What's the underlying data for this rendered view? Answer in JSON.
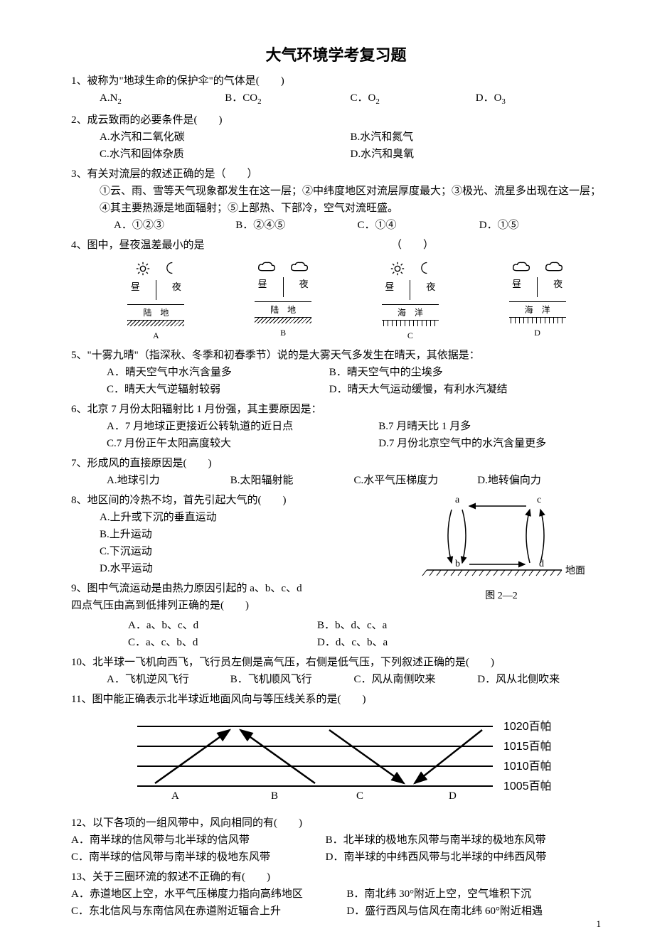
{
  "title": "大气环境学考复习题",
  "q1": {
    "text": "1、被称为\"地球生命的保护伞\"的气体是(　　)",
    "a": "A.N₂",
    "b": "B．CO₂",
    "c": "C．O₂",
    "d": "D．O₃"
  },
  "q2": {
    "text": "2、成云致雨的必要条件是(　　)",
    "a": "A.水汽和二氧化碳",
    "b": "B.水汽和氮气",
    "c": "C.水汽和固体杂质",
    "d": "D.水汽和臭氧"
  },
  "q3": {
    "text": "3、有关对流层的叙述正确的是（　　）",
    "detail": "①云、雨、雪等天气现象都发生在这一层；②中纬度地区对流层厚度最大；③极光、流星多出现在这一层；④其主要热源是地面辐射；⑤上部热、下部冷，空气对流旺盛。",
    "a": "A．①②③",
    "b": "B．②④⑤",
    "c": "C．①④",
    "d": "D．①⑤"
  },
  "q4": {
    "text": "4、图中，昼夜温差最小的是　　　　　　　　　　　　　　　　　　（　　）",
    "panels": [
      {
        "key": "A",
        "day_icon": "sun",
        "night_icon": "moon",
        "day": "昼",
        "night": "夜",
        "surface": "陆　地",
        "ground": "land"
      },
      {
        "key": "B",
        "day_icon": "cloud",
        "night_icon": "cloud",
        "day": "昼",
        "night": "夜",
        "surface": "陆　地",
        "ground": "land"
      },
      {
        "key": "C",
        "day_icon": "sun",
        "night_icon": "moon",
        "day": "昼",
        "night": "夜",
        "surface": "海　洋",
        "ground": "sea"
      },
      {
        "key": "D",
        "day_icon": "cloud",
        "night_icon": "cloud",
        "day": "昼",
        "night": "夜",
        "surface": "海　洋",
        "ground": "sea"
      }
    ]
  },
  "q5": {
    "text": "5、\"十雾九晴\"（指深秋、冬季和初春季节）说的是大雾天气多发生在晴天，其依据是：",
    "a": "A．晴天空气中水汽含量多",
    "b": "B．晴天空气中的尘埃多",
    "c": "C．晴天大气逆辐射较弱",
    "d": "D．晴天大气运动缓慢，有利水汽凝结"
  },
  "q6": {
    "text": "6、北京 7 月份太阳辐射比 1 月份强，其主要原因是：",
    "a": "A．7 月地球正更接近公转轨道的近日点",
    "b": "B.7 月晴天比 1 月多",
    "c": "C.7 月份正午太阳高度较大",
    "d": "D.7 月份北京空气中的水汽含量更多"
  },
  "q7": {
    "text": "7、形成风的直接原因是(　　)",
    "a": "A.地球引力",
    "b": "B.太阳辐射能",
    "c": "C.水平气压梯度力",
    "d": "D.地转偏向力"
  },
  "q8": {
    "text": "8、地区间的冷热不均，首先引起大气的(　　)",
    "a": "A.上升或下沉的垂直运动",
    "b": "B.上升运动",
    "c": "C.下沉运动",
    "d": "D.水平运动",
    "fig": {
      "labels": {
        "a": "a",
        "b": "b",
        "c": "c",
        "d": "d",
        "ground": "地面",
        "caption": "图 2—2"
      },
      "ground_hatch_color": "#000000"
    }
  },
  "q9": {
    "text": "9、图中气流运动是由热力原因引起的 a、b、c、d",
    "text2": "四点气压由高到低排列正确的是(　　)",
    "a": "A．a、b、c、d",
    "b": "B．b、d、c、a",
    "c": "C．a、c、b、d",
    "d": "D．d、c、b、a"
  },
  "q10": {
    "text": "10、北半球一飞机向西飞，飞行员左侧是高气压，右侧是低气压，下列叙述正确的是(　　)",
    "a": "A．飞机逆风飞行",
    "b": "B．飞机顺风飞行",
    "c": "C．风从南侧吹来",
    "d": "D．风从北侧吹来"
  },
  "q11": {
    "text": "11、图中能正确表示北半球近地面风向与等压线关系的是(　　)",
    "fig": {
      "levels": [
        "1020百帕",
        "1015百帕",
        "1010百帕",
        "1005百帕"
      ],
      "labels": [
        "A",
        "B",
        "C",
        "D"
      ],
      "line_color": "#000000",
      "arrow_color": "#000000"
    }
  },
  "q12": {
    "text": "12、以下各项的一组风带中，风向相同的有(　　)",
    "a": "A．南半球的信风带与北半球的信风带",
    "b": "B．北半球的极地东风带与南半球的极地东风带",
    "c": "C．南半球的信风带与南半球的极地东风带",
    "d": "D．南半球的中纬西风带与北半球的中纬西风带"
  },
  "q13": {
    "text": "13、关于三圈环流的叙述不正确的有(　　)",
    "a": "A．赤道地区上空，水平气压梯度力指向高纬地区",
    "b": "B．南北纬 30°附近上空，空气堆积下沉",
    "c": "C．东北信风与东南信风在赤道附近辐合上升",
    "d": "D．盛行西风与信风在南北纬 60°附近相遇"
  },
  "page_number": "1"
}
